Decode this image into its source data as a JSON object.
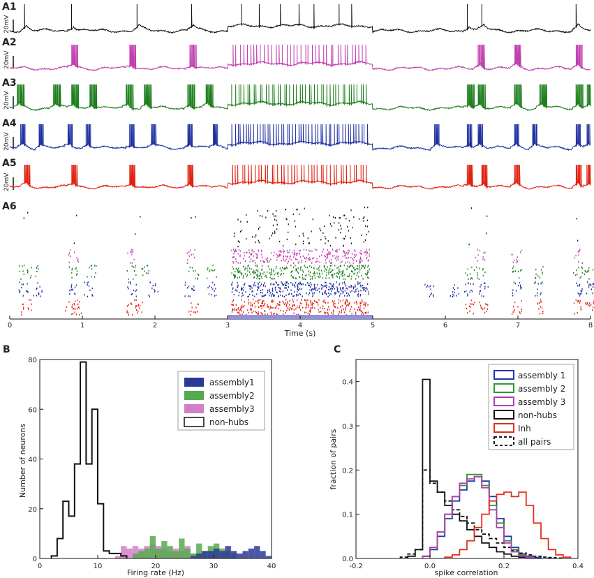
{
  "colors": {
    "a1": "#111111",
    "a2": "#c040b0",
    "a3": "#208020",
    "a4": "#2030a0",
    "a5": "#e02010",
    "stim": "#9090e0",
    "b_assembly1": "#2b3a97",
    "b_assembly2": "#57a950",
    "b_assembly3": "#d37fc8",
    "c_assembly1": "#2236a8",
    "c_assembly2": "#2f9a2f",
    "c_assembly3": "#b040b0",
    "c_inh": "#e03020"
  },
  "panelA": {
    "trace_labels": [
      "A1",
      "A2",
      "A3",
      "A4",
      "A5"
    ],
    "raster_label": "A6",
    "scale_bar": "20mV",
    "time_label": "Time (s)",
    "time_ticks": [
      "0",
      "1",
      "2",
      "3",
      "4",
      "5",
      "6",
      "7",
      "8"
    ],
    "time_range": [
      0,
      8
    ],
    "stimulus_interval": [
      3,
      5
    ],
    "burst_times": [
      0.85,
      1.65,
      2.48,
      6.45,
      6.95,
      7.8
    ],
    "hub_events": [
      0.2,
      0.85,
      1.75,
      2.5,
      6.3,
      6.5,
      7.8
    ]
  },
  "chart_data": [
    {
      "type": "bar",
      "panel": "B",
      "title": "",
      "xlabel": "Firing rate (Hz)",
      "ylabel": "Number of neurons",
      "xlim": [
        0,
        40
      ],
      "ylim": [
        0,
        80
      ],
      "xticks": [
        "0",
        "10",
        "20",
        "30",
        "40"
      ],
      "yticks": [
        "0",
        "20",
        "40",
        "60",
        "80"
      ],
      "bin_width": 1,
      "legend": [
        "assembly1",
        "assembly2",
        "assembly3",
        "non-hubs"
      ],
      "legend_position": "top-right",
      "series": [
        {
          "name": "non-hubs",
          "style": "step-outline",
          "x": [
            2,
            3,
            4,
            5,
            6,
            7,
            8,
            9,
            10,
            11,
            12,
            13,
            14
          ],
          "values": [
            1,
            8,
            23,
            17,
            38,
            79,
            38,
            60,
            22,
            3,
            2,
            2,
            1
          ]
        },
        {
          "name": "assembly3",
          "style": "filled",
          "x": [
            13,
            14,
            15,
            16,
            17,
            18,
            19,
            20,
            21,
            22,
            23,
            24,
            25,
            26,
            27
          ],
          "values": [
            1,
            5,
            4,
            5,
            4,
            5,
            6,
            5,
            4,
            3,
            4,
            3,
            5,
            2,
            1
          ]
        },
        {
          "name": "assembly2",
          "style": "filled",
          "x": [
            16,
            17,
            18,
            19,
            20,
            21,
            22,
            23,
            24,
            25,
            26,
            27,
            28,
            29,
            30,
            31,
            32,
            33
          ],
          "values": [
            2,
            3,
            4,
            9,
            4,
            7,
            5,
            3,
            8,
            4,
            2,
            6,
            3,
            5,
            6,
            4,
            3,
            2
          ]
        },
        {
          "name": "assembly1",
          "style": "filled",
          "x": [
            26,
            27,
            28,
            29,
            30,
            31,
            32,
            33,
            34,
            35,
            36,
            37,
            38,
            39
          ],
          "values": [
            1,
            2,
            3,
            3,
            4,
            3,
            5,
            3,
            2,
            3,
            4,
            5,
            3,
            1
          ]
        }
      ]
    },
    {
      "type": "line",
      "panel": "C",
      "title": "",
      "xlabel": "spike correlation",
      "ylabel": "fraction of pairs",
      "xlim": [
        -0.2,
        0.4
      ],
      "ylim": [
        0,
        0.45
      ],
      "xticks": [
        "-0.2",
        "0.0",
        "0.2",
        "0.4"
      ],
      "yticks": [
        "0.0",
        "0.1",
        "0.2",
        "0.3",
        "0.4"
      ],
      "bin_width": 0.02,
      "legend": [
        "assembly 1",
        "assembly 2",
        "assembly 3",
        "non-hubs",
        "Inh",
        "all pairs"
      ],
      "legend_position": "top-right",
      "series": [
        {
          "name": "non-hubs",
          "x0": -0.06,
          "values": [
            0.005,
            0.02,
            0.405,
            0.175,
            0.15,
            0.12,
            0.1,
            0.085,
            0.065,
            0.05,
            0.035,
            0.025,
            0.015,
            0.01,
            0.005,
            0.003
          ]
        },
        {
          "name": "all pairs",
          "dashed": true,
          "x0": -0.08,
          "values": [
            0.003,
            0.01,
            0.02,
            0.2,
            0.17,
            0.15,
            0.13,
            0.11,
            0.095,
            0.08,
            0.065,
            0.055,
            0.045,
            0.035,
            0.025,
            0.018,
            0.012,
            0.008,
            0.005,
            0.003,
            0.002,
            0.001
          ]
        },
        {
          "name": "assembly 1",
          "x0": -0.02,
          "values": [
            0.005,
            0.02,
            0.05,
            0.09,
            0.13,
            0.155,
            0.175,
            0.185,
            0.175,
            0.14,
            0.09,
            0.05,
            0.025,
            0.01,
            0.005,
            0.002
          ]
        },
        {
          "name": "assembly 2",
          "x0": -0.02,
          "values": [
            0.005,
            0.025,
            0.06,
            0.1,
            0.14,
            0.165,
            0.19,
            0.19,
            0.165,
            0.12,
            0.08,
            0.04,
            0.02,
            0.008,
            0.003
          ]
        },
        {
          "name": "assembly 3",
          "x0": -0.02,
          "values": [
            0.005,
            0.025,
            0.06,
            0.1,
            0.14,
            0.17,
            0.18,
            0.185,
            0.16,
            0.11,
            0.07,
            0.035,
            0.015,
            0.006,
            0.002
          ]
        },
        {
          "name": "Inh",
          "x0": 0.04,
          "values": [
            0.003,
            0.008,
            0.02,
            0.04,
            0.07,
            0.1,
            0.13,
            0.145,
            0.15,
            0.14,
            0.15,
            0.12,
            0.08,
            0.045,
            0.02,
            0.008,
            0.003
          ]
        }
      ]
    }
  ]
}
